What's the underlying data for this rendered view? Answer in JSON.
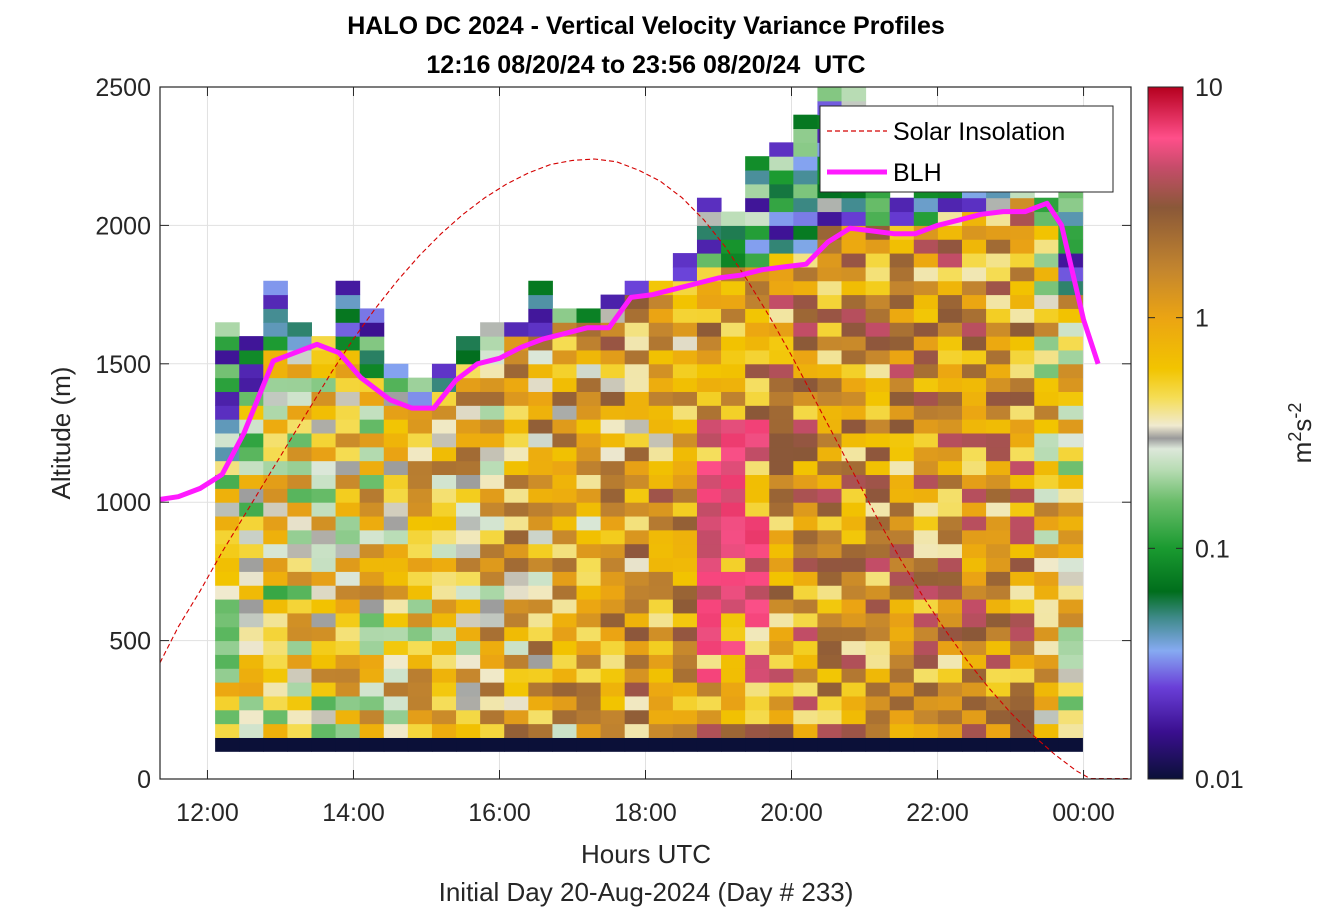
{
  "chart_data": {
    "type": "heatmap",
    "title": "HALO DC 2024 - Vertical Velocity Variance Profiles",
    "subtitle": "12:16 08/20/24 to 23:56 08/20/24  UTC",
    "xlabel": "Hours UTC",
    "xlabel2": "Initial Day 20-Aug-2024 (Day # 233)",
    "ylabel": "Altitude (m)",
    "colorbar_label": "m²s⁻²",
    "colorbar_label_base": "m",
    "colorbar_label_sup1": "2",
    "colorbar_label_mid": "s",
    "colorbar_label_sup2": "-2",
    "xlim": [
      11.35,
      24.65
    ],
    "ylim": [
      0,
      2500
    ],
    "x_ticks": [
      {
        "value": 12,
        "label": "12:00"
      },
      {
        "value": 14,
        "label": "14:00"
      },
      {
        "value": 16,
        "label": "16:00"
      },
      {
        "value": 18,
        "label": "18:00"
      },
      {
        "value": 20,
        "label": "20:00"
      },
      {
        "value": 22,
        "label": "22:00"
      },
      {
        "value": 24,
        "label": "00:00"
      }
    ],
    "y_ticks": [
      {
        "value": 0,
        "label": "0"
      },
      {
        "value": 500,
        "label": "500"
      },
      {
        "value": 1000,
        "label": "1000"
      },
      {
        "value": 1500,
        "label": "1500"
      },
      {
        "value": 2000,
        "label": "2000"
      },
      {
        "value": 2500,
        "label": "2500"
      }
    ],
    "colorbar": {
      "scale": "log",
      "range": [
        0.01,
        10
      ],
      "ticks": [
        {
          "value": 0.01,
          "label": "0.01"
        },
        {
          "value": 0.1,
          "label": "0.1"
        },
        {
          "value": 1,
          "label": "1"
        },
        {
          "value": 10,
          "label": "10"
        }
      ],
      "stops": [
        {
          "value": 0.01,
          "color": "#0b1038"
        },
        {
          "value": 0.016,
          "color": "#3a0f8f"
        },
        {
          "value": 0.025,
          "color": "#6a3fd8"
        },
        {
          "value": 0.036,
          "color": "#86aaf2"
        },
        {
          "value": 0.05,
          "color": "#3f8a8a"
        },
        {
          "value": 0.065,
          "color": "#006e1c"
        },
        {
          "value": 0.1,
          "color": "#1a9a30"
        },
        {
          "value": 0.16,
          "color": "#6abd6a"
        },
        {
          "value": 0.22,
          "color": "#b8dcb4"
        },
        {
          "value": 0.27,
          "color": "#dde8da"
        },
        {
          "value": 0.3,
          "color": "#9a9a9a"
        },
        {
          "value": 0.34,
          "color": "#f0ead0"
        },
        {
          "value": 0.45,
          "color": "#f5dd55"
        },
        {
          "value": 0.6,
          "color": "#f2c400"
        },
        {
          "value": 1.0,
          "color": "#eba413"
        },
        {
          "value": 1.6,
          "color": "#c4862e"
        },
        {
          "value": 3.0,
          "color": "#8a5838"
        },
        {
          "value": 4.5,
          "color": "#c64c6a"
        },
        {
          "value": 6.0,
          "color": "#ff4f8a"
        },
        {
          "value": 10,
          "color": "#b5001e"
        }
      ]
    },
    "profile_times": [
      12.27,
      12.6,
      12.93,
      13.27,
      13.6,
      13.93,
      14.27,
      14.6,
      14.93,
      15.27,
      15.6,
      15.93,
      16.27,
      16.6,
      16.93,
      17.27,
      17.6,
      17.93,
      18.27,
      18.6,
      18.93,
      19.27,
      19.6,
      19.93,
      20.27,
      20.6,
      20.93,
      21.27,
      21.6,
      21.93,
      22.27,
      22.6,
      22.93,
      23.27,
      23.6,
      23.93
    ],
    "profile_tops": [
      1620,
      1570,
      1800,
      1620,
      1580,
      1800,
      1700,
      1490,
      1420,
      1480,
      1560,
      1620,
      1650,
      1760,
      1660,
      1680,
      1720,
      1790,
      1780,
      1860,
      2080,
      2050,
      2240,
      2260,
      2360,
      2480,
      2480,
      2160,
      2080,
      2140,
      2160,
      2220,
      2260,
      2220,
      2100,
      2160
    ],
    "gate_height": 50,
    "floor_value": 0.01,
    "floor_range": [
      100,
      150
    ],
    "series": [
      {
        "name": "Solar Insolation",
        "color": "#d40000",
        "style": "dashed",
        "x": [
          11.35,
          11.6,
          11.9,
          12.2,
          12.5,
          12.8,
          13.1,
          13.4,
          13.7,
          14.0,
          14.3,
          14.6,
          14.9,
          15.2,
          15.5,
          15.8,
          16.1,
          16.4,
          16.7,
          17.0,
          17.3,
          17.6,
          17.9,
          18.2,
          18.5,
          18.8,
          19.1,
          19.4,
          19.7,
          20.0,
          20.3,
          20.6,
          20.9,
          21.2,
          21.5,
          21.8,
          22.1,
          22.4,
          22.7,
          23.0,
          23.3,
          23.6,
          23.9,
          24.1
        ],
        "y": [
          420,
          550,
          680,
          820,
          950,
          1080,
          1210,
          1340,
          1470,
          1590,
          1700,
          1800,
          1890,
          1970,
          2040,
          2100,
          2150,
          2190,
          2220,
          2235,
          2240,
          2230,
          2200,
          2160,
          2100,
          2020,
          1920,
          1800,
          1670,
          1530,
          1380,
          1230,
          1080,
          930,
          790,
          660,
          540,
          430,
          330,
          240,
          160,
          90,
          30,
          0
        ]
      },
      {
        "name": "BLH",
        "color": "#ff1aff",
        "style": "solid",
        "x": [
          11.35,
          11.6,
          11.9,
          12.2,
          12.5,
          12.7,
          12.9,
          13.2,
          13.5,
          13.8,
          14.1,
          14.5,
          14.8,
          15.1,
          15.4,
          15.7,
          16.0,
          16.3,
          16.6,
          16.9,
          17.2,
          17.5,
          17.8,
          18.1,
          18.4,
          18.7,
          19.0,
          19.3,
          19.6,
          19.9,
          20.2,
          20.5,
          20.8,
          21.1,
          21.4,
          21.7,
          22.0,
          22.3,
          22.6,
          22.9,
          23.2,
          23.5,
          23.7,
          24.0,
          24.2
        ],
        "y": [
          1010,
          1020,
          1050,
          1100,
          1250,
          1380,
          1510,
          1540,
          1570,
          1540,
          1450,
          1370,
          1340,
          1340,
          1440,
          1500,
          1520,
          1560,
          1590,
          1610,
          1630,
          1630,
          1740,
          1750,
          1770,
          1790,
          1810,
          1820,
          1840,
          1850,
          1860,
          1940,
          1990,
          1980,
          1970,
          1970,
          2000,
          2020,
          2040,
          2050,
          2050,
          2080,
          2000,
          1660,
          1500
        ]
      }
    ],
    "legend": {
      "position": "top-right",
      "entries": [
        {
          "label": "Solar Insolation"
        },
        {
          "label": "BLH"
        }
      ]
    }
  }
}
